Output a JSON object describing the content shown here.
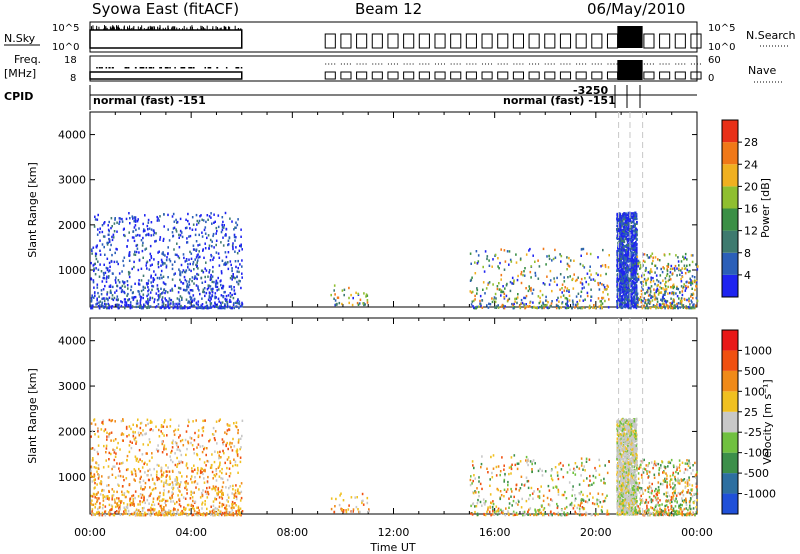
{
  "header": {
    "station": "Syowa East (fitACF)",
    "beam": "Beam 12",
    "date": "06/May/2010"
  },
  "time_axis": {
    "label": "Time UT",
    "ticks": [
      "00:00",
      "04:00",
      "08:00",
      "12:00",
      "16:00",
      "20:00",
      "00:00"
    ],
    "range_hours": [
      0,
      24
    ]
  },
  "status_panels": {
    "nsky": {
      "label": "N.Sky",
      "right_label": "N.Search",
      "ticks_left": [
        "10^5",
        "10^0"
      ],
      "ticks_right": [
        "10^5",
        "10^0"
      ]
    },
    "freq": {
      "label": "Freq.",
      "unit": "[MHz]",
      "right_label": "Nave",
      "ticks_left": [
        "18",
        "8"
      ],
      "ticks_right": [
        "60",
        "0"
      ]
    },
    "cpid": {
      "label": "CPID",
      "entries": [
        "normal (fast) -151",
        "normal (fast) -151",
        "-3250"
      ]
    }
  },
  "chart_data": [
    {
      "type": "heatmap",
      "panel": "power",
      "ylabel": "Slant Range [km]",
      "xlabel": "",
      "ylim": [
        180,
        4500
      ],
      "yticks": [
        1000,
        2000,
        3000,
        4000
      ],
      "colorbar": {
        "label": "Power [dB]",
        "range": [
          0,
          32
        ],
        "ticks": [
          "4",
          "8",
          "12",
          "16",
          "20",
          "24",
          "28"
        ],
        "tick_values": [
          4,
          8,
          12,
          16,
          20,
          24,
          28
        ],
        "colors": [
          "#1f24f0",
          "#2b5fb8",
          "#3e7a6f",
          "#3a8f45",
          "#8fbf30",
          "#f0b020",
          "#f07818",
          "#e83018"
        ]
      },
      "scatter_regions": [
        {
          "t": [
            0.0,
            6.0
          ],
          "r": [
            180,
            2300
          ],
          "density": "high",
          "dominant": "blue"
        },
        {
          "t": [
            9.5,
            11.0
          ],
          "r": [
            250,
            700
          ],
          "density": "low",
          "dominant": "mixed"
        },
        {
          "t": [
            15.0,
            20.5
          ],
          "r": [
            180,
            1500
          ],
          "density": "medium",
          "dominant": "mixed"
        },
        {
          "t": [
            20.8,
            21.6
          ],
          "r": [
            180,
            2300
          ],
          "density": "full",
          "dominant": "blue"
        },
        {
          "t": [
            21.6,
            24.0
          ],
          "r": [
            180,
            1400
          ],
          "density": "medium",
          "dominant": "mixed"
        }
      ],
      "dashed_markers_hours": [
        20.9,
        21.35,
        21.85
      ]
    },
    {
      "type": "heatmap",
      "panel": "velocity",
      "ylabel": "Slant Range [km]",
      "xlabel": "Time UT",
      "ylim": [
        180,
        4500
      ],
      "yticks": [
        1000,
        2000,
        3000,
        4000
      ],
      "colorbar": {
        "label": "Velocity [m s⁻¹]",
        "ticks": [
          "1000",
          "500",
          "100",
          "25",
          "-25",
          "-100",
          "-500",
          "-1000"
        ],
        "colors": [
          "#2050d8",
          "#2d6fa0",
          "#3c8f4a",
          "#70c040",
          "#c8c8c8",
          "#f0c020",
          "#f08a18",
          "#f05010",
          "#e81818"
        ]
      },
      "scatter_regions": [
        {
          "t": [
            0.0,
            6.0
          ],
          "r": [
            180,
            2300
          ],
          "density": "high",
          "dominant": "orange"
        },
        {
          "t": [
            9.5,
            11.0
          ],
          "r": [
            250,
            700
          ],
          "density": "low",
          "dominant": "orange"
        },
        {
          "t": [
            15.0,
            20.5
          ],
          "r": [
            180,
            1500
          ],
          "density": "medium",
          "dominant": "mixed"
        },
        {
          "t": [
            20.8,
            21.6
          ],
          "r": [
            180,
            2300
          ],
          "density": "full",
          "dominant": "gray"
        },
        {
          "t": [
            21.6,
            24.0
          ],
          "r": [
            180,
            1400
          ],
          "density": "medium",
          "dominant": "mixed"
        }
      ],
      "dashed_markers_hours": [
        20.9,
        21.35,
        21.85
      ]
    }
  ]
}
